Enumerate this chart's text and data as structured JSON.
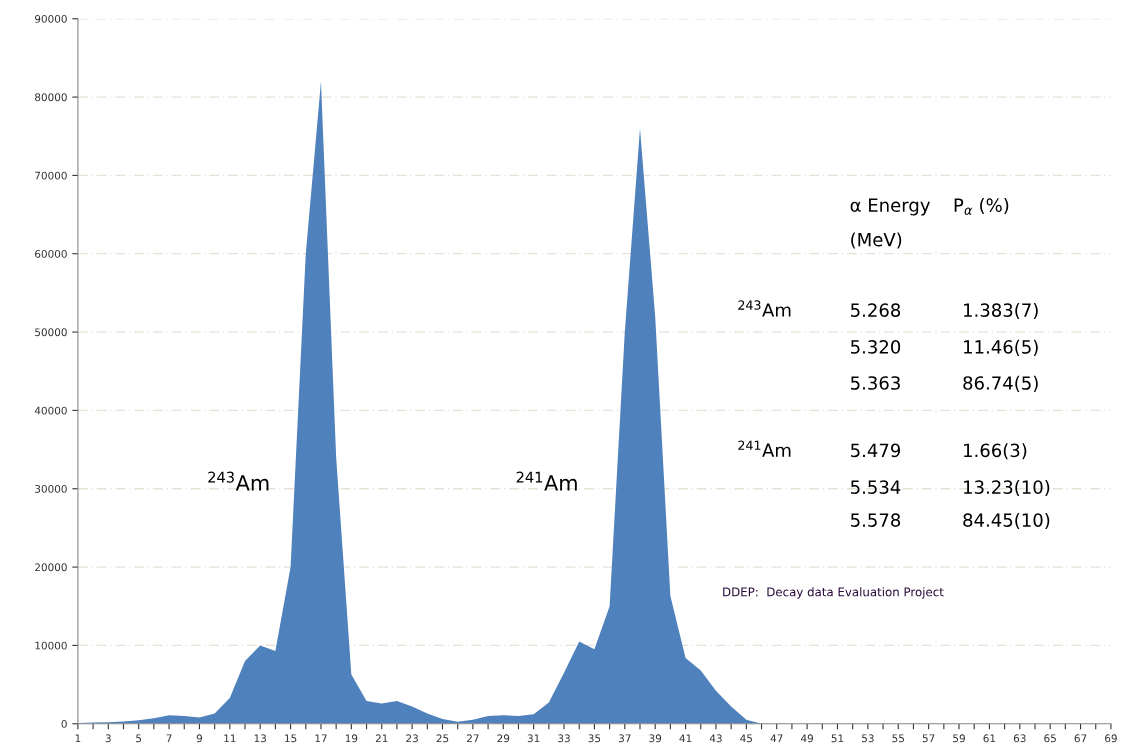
{
  "chart_data": {
    "type": "area",
    "color": "#4f81bd",
    "categories": [
      "1",
      null,
      "3",
      null,
      "5",
      null,
      "7",
      null,
      "9",
      null,
      "11",
      null,
      "13",
      null,
      "15",
      null,
      "17",
      null,
      "19",
      null,
      "21",
      null,
      "23",
      null,
      "25",
      null,
      "27",
      null,
      "29",
      null,
      "31",
      null,
      "33",
      null,
      "35",
      null,
      "37",
      null,
      "39",
      null,
      "41",
      null,
      "43",
      null,
      "45",
      null,
      "47",
      null,
      "49",
      null,
      "51",
      null,
      "53",
      null,
      "55",
      null,
      "57",
      null,
      "59",
      null,
      "61",
      null,
      "63",
      null,
      "65",
      null,
      "67",
      null,
      "69"
    ],
    "values": [
      100,
      150,
      200,
      300,
      450,
      700,
      1100,
      1000,
      800,
      1300,
      3300,
      8000,
      10000,
      9300,
      20000,
      60000,
      82000,
      34000,
      6300,
      2900,
      2600,
      2900,
      2200,
      1300,
      600,
      250,
      500,
      1000,
      1100,
      1000,
      1200,
      2700,
      6500,
      10500,
      9500,
      15000,
      50000,
      76000,
      52000,
      16300,
      8400,
      6800,
      4200,
      2200,
      500,
      0,
      0,
      0,
      0,
      0,
      0,
      0,
      0,
      0,
      0,
      0,
      0,
      0,
      0,
      0,
      0,
      0,
      0,
      0,
      0,
      0,
      0,
      0,
      0
    ],
    "ylim": [
      0,
      90000
    ],
    "yticks": [
      0,
      10000,
      20000,
      30000,
      40000,
      50000,
      60000,
      70000,
      80000,
      90000
    ],
    "grid": "y",
    "annotations": [
      "$^{243}$Am",
      "$^{241}$Am",
      "α Energy",
      "(MeV)",
      "P$_{α}$ (%)",
      "$^{243}$Am",
      "5.268",
      "1.383(7)",
      "5.320",
      "11.46(5)",
      "5.363",
      "86.74(5)",
      "$^{241}$Am",
      "5.479",
      "1.66(3)",
      "5.534",
      "13.23(10)",
      "5.578",
      "84.45(10)",
      "DDEP:  Decay data Evaluation Project"
    ]
  }
}
